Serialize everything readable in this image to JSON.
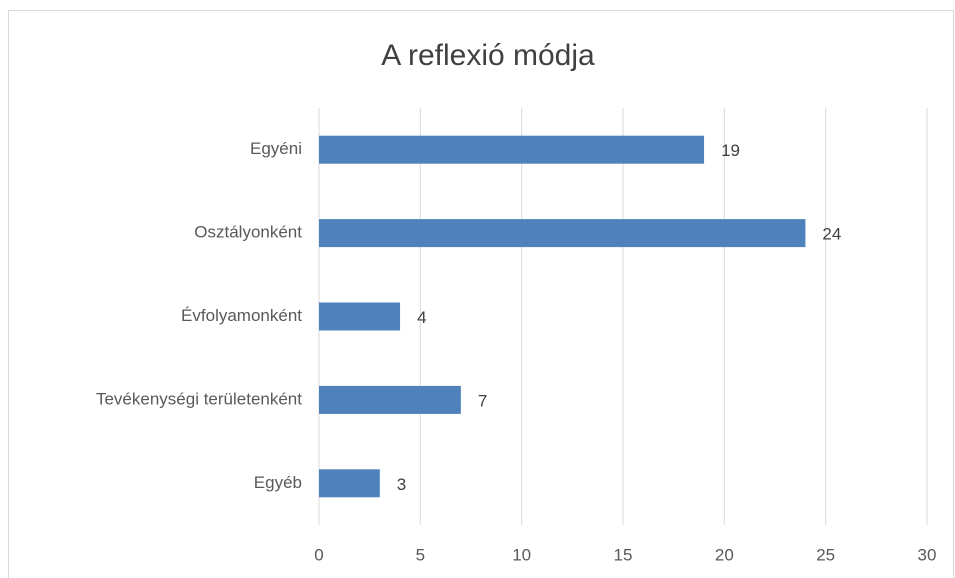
{
  "chart_data": {
    "type": "bar",
    "orientation": "horizontal",
    "title": "A reflexió módja",
    "categories": [
      "Egyéni",
      "Osztályonként",
      "Évfolyamonként",
      "Tevékenységi területenként",
      "Egyéb"
    ],
    "values": [
      19,
      24,
      4,
      7,
      3
    ],
    "color": "#4f81bd",
    "xlim": [
      0,
      30
    ],
    "xticks": [
      0,
      5,
      10,
      15,
      20,
      25,
      30
    ],
    "grid": true,
    "data_labels": true
  }
}
